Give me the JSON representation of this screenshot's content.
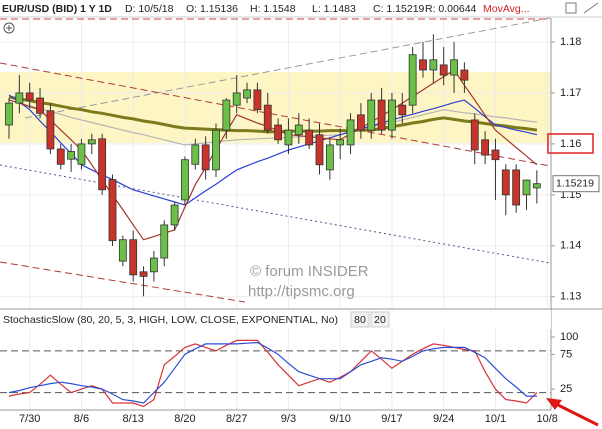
{
  "chart_data": [
    {
      "type": "candlestick",
      "title": "EUR/USD (BID) 1 Y 1D",
      "info": [
        "D: 10/5/18",
        "O: 1.15136",
        "H: 1.1548",
        "L: 1.1483",
        "C: 1.15219",
        "R: 0.00644",
        "MovAvg..."
      ],
      "annotations": [
        "© forum INSIDER",
        "http://tipsmc.org"
      ],
      "categories": [
        null,
        null,
        "7/30",
        null,
        null,
        null,
        null,
        "8/6",
        null,
        null,
        null,
        null,
        "8/13",
        null,
        null,
        null,
        null,
        "8/20",
        null,
        null,
        null,
        null,
        "8/27",
        null,
        null,
        null,
        null,
        "9/3",
        null,
        null,
        null,
        null,
        "9/10",
        null,
        null,
        null,
        null,
        "9/17",
        null,
        null,
        null,
        null,
        "9/24",
        null,
        null,
        null,
        null,
        "10/1",
        null,
        null,
        null,
        null,
        "10/8"
      ],
      "open": [
        1.1637,
        1.168,
        1.17,
        1.169,
        1.1665,
        1.159,
        1.157,
        1.156,
        1.16,
        1.161,
        1.153,
        1.137,
        1.1412,
        1.1349,
        1.1349,
        1.1376,
        1.1441,
        1.149,
        1.156,
        1.1598,
        1.1549,
        1.1627,
        1.1676,
        1.169,
        1.1706,
        1.1676,
        1.1637,
        1.1598,
        1.1618,
        1.1627,
        1.1618,
        1.1549,
        1.1598,
        1.1598,
        1.1657,
        1.1627,
        1.1686,
        1.1627,
        1.1676,
        1.1676,
        1.1765,
        1.1745,
        1.1755,
        1.1735,
        1.1745,
        1.1647,
        1.1608,
        1.1588,
        1.1549,
        1.1549,
        1.15,
        1.15136,
        null
      ],
      "high": [
        1.169,
        1.1735,
        1.172,
        1.171,
        1.168,
        1.16,
        1.16,
        1.161,
        1.162,
        1.162,
        1.154,
        1.142,
        1.143,
        1.136,
        1.139,
        1.145,
        1.1485,
        1.1575,
        1.161,
        1.1615,
        1.164,
        1.169,
        1.1735,
        1.172,
        1.172,
        1.17,
        1.165,
        1.165,
        1.166,
        1.165,
        1.164,
        1.161,
        1.163,
        1.166,
        1.168,
        1.17,
        1.171,
        1.17,
        1.17,
        1.179,
        1.18,
        1.1815,
        1.179,
        1.18,
        1.176,
        1.166,
        1.1625,
        1.161,
        1.156,
        1.156,
        1.153,
        1.1548,
        null
      ],
      "low": [
        1.161,
        1.166,
        1.167,
        1.165,
        1.158,
        1.155,
        1.1545,
        1.155,
        1.158,
        1.15,
        1.14,
        1.136,
        1.133,
        1.1301,
        1.133,
        1.136,
        1.143,
        1.148,
        1.155,
        1.153,
        1.1535,
        1.161,
        1.166,
        1.168,
        1.166,
        1.162,
        1.16,
        1.158,
        1.16,
        1.159,
        1.154,
        1.153,
        1.157,
        1.158,
        1.161,
        1.161,
        1.162,
        1.161,
        1.164,
        1.166,
        1.173,
        1.172,
        1.1715,
        1.17,
        1.17,
        1.156,
        1.156,
        1.149,
        1.146,
        1.1465,
        1.147,
        1.1483,
        null
      ],
      "close": [
        1.168,
        1.17,
        1.1686,
        1.166,
        1.159,
        1.156,
        1.1585,
        1.16,
        1.1608,
        1.151,
        1.141,
        1.1412,
        1.1343,
        1.134,
        1.1376,
        1.1441,
        1.148,
        1.1569,
        1.1598,
        1.1549,
        1.1627,
        1.1686,
        1.17,
        1.1706,
        1.1667,
        1.1627,
        1.1608,
        1.1627,
        1.1637,
        1.1598,
        1.1559,
        1.1598,
        1.1608,
        1.1647,
        1.1627,
        1.1686,
        1.1627,
        1.1686,
        1.1657,
        1.1775,
        1.1745,
        1.1765,
        1.1735,
        1.1765,
        1.1725,
        1.1588,
        1.1578,
        1.1569,
        1.15,
        1.148,
        1.1529,
        1.15219,
        null
      ],
      "up_color": "#6cc04a",
      "down_color": "#c8342b",
      "series": [
        {
          "color": "#7d7a1c",
          "width": 3,
          "values": [
            1.1692,
            1.1688,
            1.1685,
            1.1681,
            1.1678,
            1.1674,
            1.167,
            1.1667,
            1.1663,
            1.166,
            1.1656,
            1.1652,
            1.1649,
            1.1645,
            1.1642,
            1.1638,
            1.1634,
            1.1631,
            1.163,
            1.1629,
            1.1628,
            1.1627,
            1.1626,
            1.1626,
            1.1625,
            1.1624,
            1.1624,
            1.1625,
            1.1625,
            1.1625,
            1.1625,
            1.1626,
            1.1626,
            1.1626,
            1.1627,
            1.1627,
            1.163,
            1.1634,
            1.1637,
            1.1641,
            1.1644,
            1.1648,
            1.1651,
            1.1648,
            1.1645,
            1.1643,
            1.164,
            1.1637,
            1.1635,
            1.1632,
            1.163,
            1.1627,
            null
          ]
        },
        {
          "color": "#b4b4b4",
          "width": 1.2,
          "values": [
            1.1686,
            1.168,
            1.1675,
            1.1669,
            1.1664,
            1.1658,
            1.1652,
            1.1647,
            1.1642,
            1.1637,
            1.1632,
            1.1627,
            1.1622,
            1.1618,
            1.1613,
            1.1608,
            1.1603,
            1.1598,
            1.16,
            1.1602,
            1.1604,
            1.1606,
            1.1608,
            1.1609,
            1.161,
            1.1611,
            1.1612,
            1.1613,
            1.1614,
            1.1615,
            1.1616,
            1.1617,
            1.1618,
            1.1623,
            1.1628,
            1.1633,
            1.1638,
            1.1642,
            1.1647,
            1.1652,
            1.1657,
            1.1662,
            1.1667,
            1.1664,
            1.1661,
            1.1659,
            1.1656,
            1.1653,
            1.1651,
            1.1648,
            1.1645,
            1.1643,
            null
          ]
        },
        {
          "color": "#2b3fd6",
          "width": 1.2,
          "values": [
            1.1696,
            1.1682,
            1.1667,
            1.1645,
            1.1624,
            1.1602,
            1.1581,
            1.1559,
            1.1549,
            1.1539,
            1.153,
            1.152,
            1.151,
            1.1504,
            1.1498,
            1.1492,
            1.1486,
            1.148,
            1.1494,
            1.1508,
            1.1521,
            1.1535,
            1.1549,
            1.1557,
            1.1565,
            1.1572,
            1.158,
            1.1588,
            1.1594,
            1.16,
            1.1606,
            1.1612,
            1.1618,
            1.1624,
            1.163,
            1.1635,
            1.1641,
            1.1647,
            1.1653,
            1.1658,
            1.1664,
            1.1669,
            1.1675,
            1.1681,
            1.1686,
            1.167,
            1.1653,
            1.1637,
            1.1632,
            1.1627,
            1.1623,
            1.1618,
            null
          ]
        },
        {
          "color": "#a2392f",
          "width": 1.2,
          "values": [
            1.1686,
            1.168,
            1.1673,
            1.1667,
            1.1647,
            1.1627,
            1.1608,
            1.1588,
            1.1559,
            1.1529,
            1.15,
            1.1471,
            1.1441,
            1.1412,
            1.1418,
            1.1425,
            1.1431,
            1.1476,
            1.152,
            1.1554,
            1.1589,
            1.1623,
            1.1657,
            1.1649,
            1.1641,
            1.1634,
            1.1626,
            1.1618,
            1.1616,
            1.1614,
            1.1612,
            1.161,
            1.1608,
            1.162,
            1.1632,
            1.1643,
            1.1655,
            1.1667,
            1.168,
            1.1693,
            1.1706,
            1.1719,
            1.1732,
            1.1745,
            1.1715,
            1.1686,
            1.1656,
            1.1627,
            1.161,
            1.1593,
            1.1576,
            1.1559,
            null
          ]
        }
      ],
      "band": [
        1.1602,
        1.1741
      ],
      "ylim": [
        1.1278,
        1.1847
      ],
      "yticks": [
        1.13,
        1.14,
        1.15,
        1.16,
        1.17,
        1.18
      ],
      "grid": true
    },
    {
      "type": "line",
      "title": "StochasticSlow (80, 20, 5, 3, HIGH, LOW, CLOSE, EXPONENTIAL, No)",
      "levels": [
        80,
        20
      ],
      "series": [
        {
          "color": "#d6343a",
          "values": [
            15,
            18,
            20,
            32,
            45,
            32,
            20,
            25,
            30,
            25,
            5,
            5,
            5,
            0,
            10,
            60,
            72,
            85,
            90,
            85,
            80,
            88,
            95,
            95,
            95,
            78,
            60,
            45,
            30,
            35,
            40,
            35,
            42,
            50,
            65,
            80,
            68,
            55,
            65,
            75,
            83,
            90,
            88,
            85,
            82,
            80,
            50,
            25,
            10,
            8,
            5,
            20,
            null
          ]
        },
        {
          "color": "#2b4fd6",
          "values": [
            20,
            23,
            27,
            30,
            33,
            35,
            33,
            30,
            28,
            25,
            18,
            10,
            8,
            5,
            20,
            35,
            55,
            75,
            83,
            90,
            90,
            90,
            90,
            91,
            92,
            84,
            75,
            62,
            50,
            45,
            40,
            40,
            40,
            50,
            60,
            65,
            70,
            68,
            65,
            72,
            80,
            83,
            85,
            85,
            85,
            78,
            70,
            55,
            40,
            28,
            15,
            15,
            null
          ]
        }
      ],
      "ylim": [
        -5,
        110
      ],
      "yticks": [
        25,
        75,
        100
      ]
    }
  ]
}
